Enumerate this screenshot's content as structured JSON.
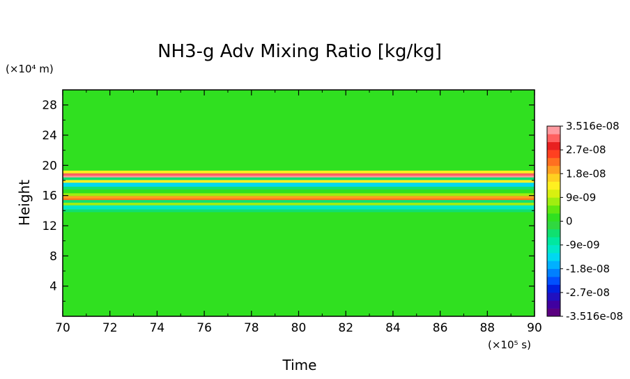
{
  "chart_data": {
    "type": "heatmap",
    "title": "NH3-g Adv Mixing Ratio [kg/kg]",
    "xlabel": "Time",
    "ylabel": "Height",
    "x_unit_label": "(×10⁵ s)",
    "y_unit_label": "(×10⁴ m)",
    "xlim": [
      70,
      90
    ],
    "ylim": [
      0,
      30
    ],
    "xticks": [
      "70",
      "72",
      "74",
      "76",
      "78",
      "80",
      "82",
      "84",
      "86",
      "88",
      "90"
    ],
    "yticks": [
      "4",
      "8",
      "12",
      "16",
      "20",
      "24",
      "28"
    ],
    "colorbar": {
      "min": -3.516e-08,
      "max": 3.516e-08,
      "labels": [
        "3.516e-08",
        "2.7e-08",
        "1.8e-08",
        "9e-09",
        "0",
        "-9e-09",
        "-1.8e-08",
        "-2.7e-08",
        "-3.516e-08"
      ],
      "colors": [
        "#5a0080",
        "#4000a0",
        "#2010c0",
        "#0020e0",
        "#0050ff",
        "#0080ff",
        "#00b0ff",
        "#00d8f0",
        "#00e8c8",
        "#00e8a0",
        "#10e070",
        "#30d840",
        "#30e020",
        "#60e810",
        "#a0ee10",
        "#d8f010",
        "#fff020",
        "#ffd020",
        "#ffa020",
        "#ff7020",
        "#ff4020",
        "#e82020",
        "#ff6060",
        "#ff9aa0"
      ]
    },
    "bands": [
      {
        "height": 18.5,
        "value": 3e-08
      },
      {
        "height": 17.6,
        "value": -1.2e-08
      },
      {
        "height": 15.5,
        "value": 1.8e-08
      },
      {
        "height": 14.6,
        "value": -9e-09
      }
    ],
    "background_value": 2e-09
  }
}
